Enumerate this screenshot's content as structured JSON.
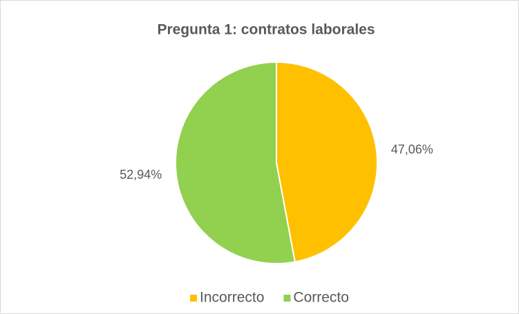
{
  "chart_data": {
    "type": "pie",
    "title": "Pregunta 1: contratos laborales",
    "categories": [
      "Incorrecto",
      "Correcto"
    ],
    "values": [
      47.06,
      52.94
    ],
    "value_labels": [
      "47,06%",
      "52,94%"
    ],
    "colors": [
      "#FFC000",
      "#92D050"
    ],
    "legend": "bottom"
  }
}
